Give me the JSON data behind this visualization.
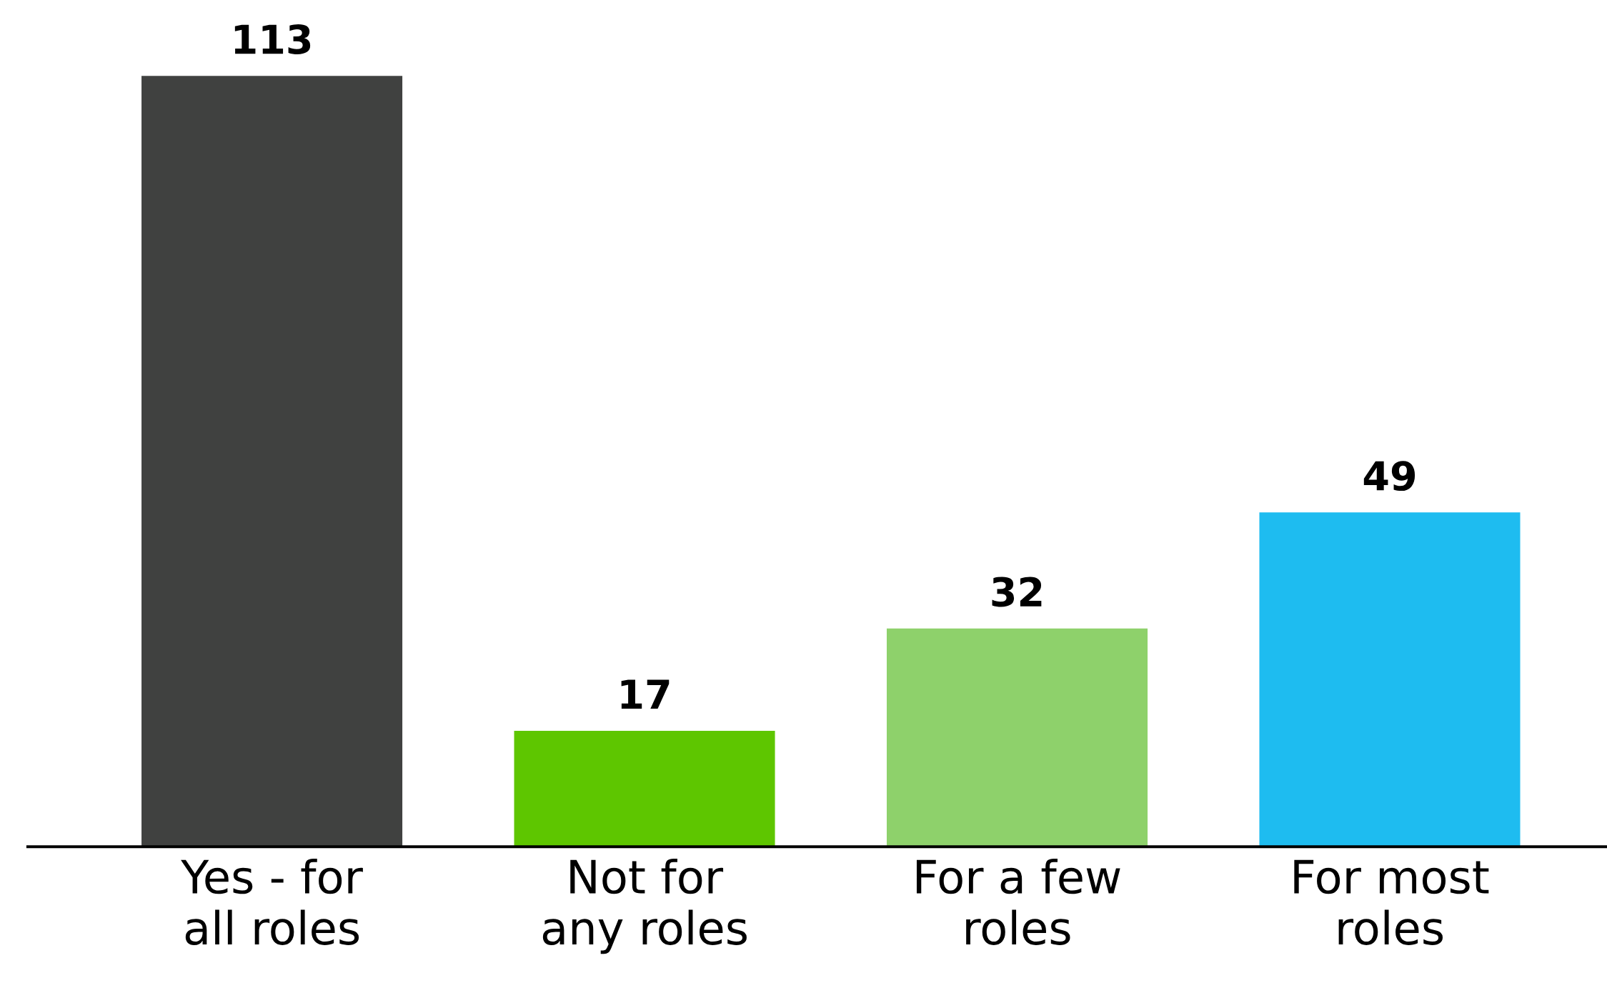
{
  "chart_data": {
    "type": "bar",
    "categories": [
      "Yes - for\nall roles",
      "Not for\nany roles",
      "For a few\nroles",
      "For most\nroles"
    ],
    "values": [
      113,
      17,
      32,
      49
    ],
    "colors": [
      "#404140",
      "#5ec600",
      "#8ed16b",
      "#1ebcf0"
    ],
    "data_labels": true,
    "grid": false,
    "legend": false
  }
}
